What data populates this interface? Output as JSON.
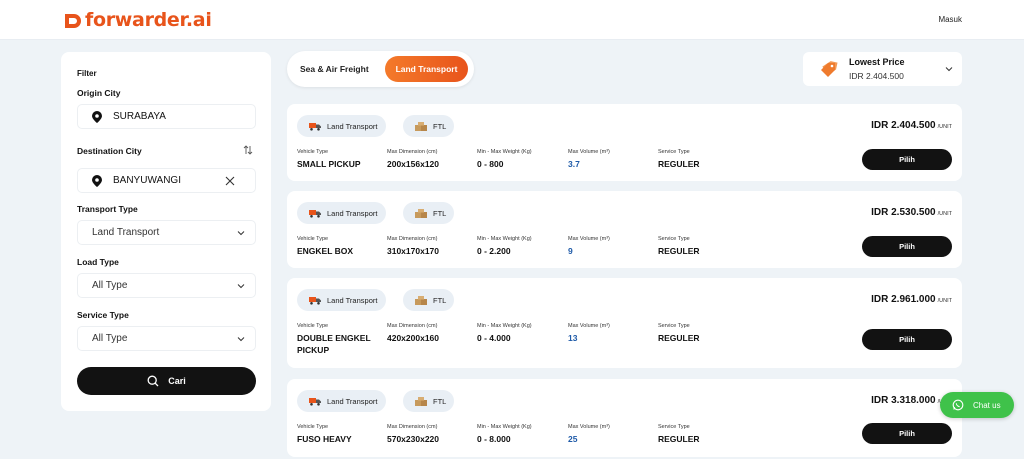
{
  "header": {
    "logo_text": "forwarder.ai",
    "login_label": "Masuk",
    "brand_color": "#e8541b"
  },
  "filter": {
    "title": "Filter",
    "origin_label": "Origin City",
    "origin_value": "SURABAYA",
    "destination_label": "Destination City",
    "destination_value": "BANYUWANGI",
    "transport_type_label": "Transport Type",
    "transport_type_value": "Land Transport",
    "load_type_label": "Load Type",
    "load_type_value": "All Type",
    "service_type_label": "Service Type",
    "service_type_value": "All Type",
    "search_label": "Cari"
  },
  "mode_toggle": {
    "sea_air": "Sea & Air Freight",
    "land": "Land Transport",
    "active": "land"
  },
  "sort": {
    "title": "Lowest Price",
    "value": "IDR 2.404.500"
  },
  "columns": {
    "vehicle": "Vehicle Type",
    "dimension": "Max Dimension (cm)",
    "weight": "Min - Max Weight (Kg)",
    "volume": "Max Volume (m³)",
    "service": "Service Type"
  },
  "results": [
    {
      "chip_mode": "Land Transport",
      "chip_load": "FTL",
      "price": "IDR 2.404.500",
      "unit": "/UNIT",
      "vehicle": "SMALL PICKUP",
      "dimension": "200x156x120",
      "weight": "0 - 800",
      "volume": "3.7",
      "service": "REGULER",
      "button": "Pilih"
    },
    {
      "chip_mode": "Land Transport",
      "chip_load": "FTL",
      "price": "IDR 2.530.500",
      "unit": "/UNIT",
      "vehicle": "ENGKEL BOX",
      "dimension": "310x170x170",
      "weight": "0 - 2.200",
      "volume": "9",
      "service": "REGULER",
      "button": "Pilih"
    },
    {
      "chip_mode": "Land Transport",
      "chip_load": "FTL",
      "price": "IDR 2.961.000",
      "unit": "/UNIT",
      "vehicle": "DOUBLE ENGKEL PICKUP",
      "dimension": "420x200x160",
      "weight": "0 - 4.000",
      "volume": "13",
      "service": "REGULER",
      "button": "Pilih"
    },
    {
      "chip_mode": "Land Transport",
      "chip_load": "FTL",
      "price": "IDR 3.318.000",
      "unit": "/UNIT",
      "vehicle": "FUSO HEAVY",
      "dimension": "570x230x220",
      "weight": "0 - 8.000",
      "volume": "25",
      "service": "REGULER",
      "button": "Pilih"
    }
  ],
  "chat": {
    "label": "Chat us"
  }
}
